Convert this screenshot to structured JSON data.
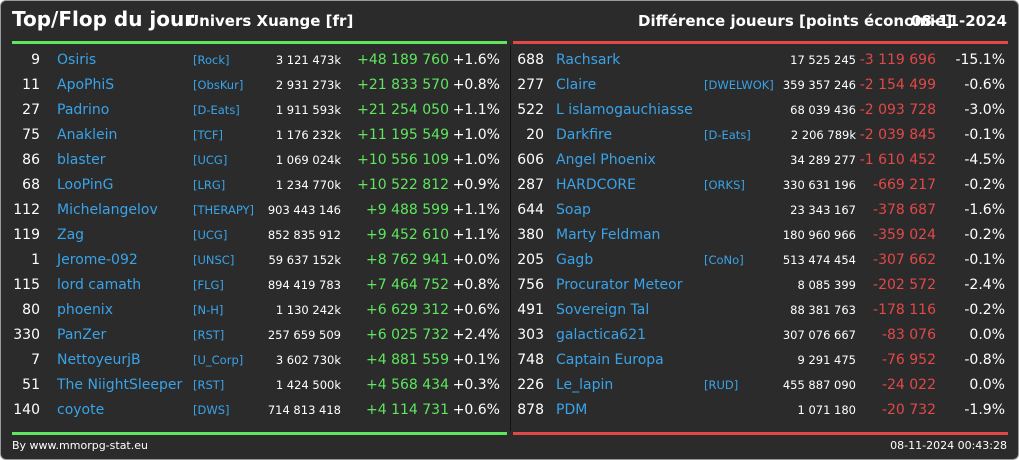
{
  "header": {
    "title": "Top/Flop du jour",
    "universe": "Univers Xuange [fr]",
    "subtitle": "Différence joueurs [points économie]",
    "date": "08-11-2024"
  },
  "colors": {
    "gain": "#5ee65e",
    "loss": "#e24848",
    "link": "#3aa3e8",
    "background": "#2b2b2b"
  },
  "top": [
    {
      "rank": "9",
      "name": "Osiris",
      "alliance": "[Rock]",
      "points": "3 121 473k",
      "diff": "+48 189 760",
      "pct": "+1.6%"
    },
    {
      "rank": "11",
      "name": "ApoPhiS",
      "alliance": "[ObsKur]",
      "points": "2 931 273k",
      "diff": "+21 833 570",
      "pct": "+0.8%"
    },
    {
      "rank": "27",
      "name": "Padrino",
      "alliance": "[D-Eats]",
      "points": "1 911 593k",
      "diff": "+21 254 050",
      "pct": "+1.1%"
    },
    {
      "rank": "75",
      "name": "Anaklein",
      "alliance": "[TCF]",
      "points": "1 176 232k",
      "diff": "+11 195 549",
      "pct": "+1.0%"
    },
    {
      "rank": "86",
      "name": "blaster",
      "alliance": "[UCG]",
      "points": "1 069 024k",
      "diff": "+10 556 109",
      "pct": "+1.0%"
    },
    {
      "rank": "68",
      "name": "LooPinG",
      "alliance": "[LRG]",
      "points": "1 234 770k",
      "diff": "+10 522 812",
      "pct": "+0.9%"
    },
    {
      "rank": "112",
      "name": "Michelangelov",
      "alliance": "[THERAPY]",
      "points": "903 443 146",
      "diff": "+9 488 599",
      "pct": "+1.1%"
    },
    {
      "rank": "119",
      "name": "Zag",
      "alliance": "[UCG]",
      "points": "852 835 912",
      "diff": "+9 452 610",
      "pct": "+1.1%"
    },
    {
      "rank": "1",
      "name": "Jerome-092",
      "alliance": "[UNSC]",
      "points": "59 637 152k",
      "diff": "+8 762 941",
      "pct": "+0.0%"
    },
    {
      "rank": "115",
      "name": "lord camath",
      "alliance": "[FLG]",
      "points": "894 419 783",
      "diff": "+7 464 752",
      "pct": "+0.8%"
    },
    {
      "rank": "80",
      "name": "phoenix",
      "alliance": "[N-H]",
      "points": "1 130 242k",
      "diff": "+6 629 312",
      "pct": "+0.6%"
    },
    {
      "rank": "330",
      "name": "PanZer",
      "alliance": "[RST]",
      "points": "257 659 509",
      "diff": "+6 025 732",
      "pct": "+2.4%"
    },
    {
      "rank": "7",
      "name": "NettoyeurjB",
      "alliance": "[U_Corp]",
      "points": "3 602 730k",
      "diff": "+4 881 559",
      "pct": "+0.1%"
    },
    {
      "rank": "51",
      "name": "The NiightSleeper",
      "alliance": "[RST]",
      "points": "1 424 500k",
      "diff": "+4 568 434",
      "pct": "+0.3%"
    },
    {
      "rank": "140",
      "name": "coyote",
      "alliance": "[DWS]",
      "points": "714 813 418",
      "diff": "+4 114 731",
      "pct": "+0.6%"
    }
  ],
  "flop": [
    {
      "rank": "688",
      "name": "Rachsark",
      "alliance": "",
      "points": "17 525 245",
      "diff": "-3 119 696",
      "pct": "-15.1%"
    },
    {
      "rank": "277",
      "name": "Claire",
      "alliance": "[DWELWOK]",
      "points": "359 357 246",
      "diff": "-2 154 499",
      "pct": "-0.6%"
    },
    {
      "rank": "522",
      "name": "L islamogauchiasse",
      "alliance": "",
      "points": "68 039 436",
      "diff": "-2 093 728",
      "pct": "-3.0%"
    },
    {
      "rank": "20",
      "name": "Darkfire",
      "alliance": "[D-Eats]",
      "points": "2 206 789k",
      "diff": "-2 039 845",
      "pct": "-0.1%"
    },
    {
      "rank": "606",
      "name": "Angel Phoenix",
      "alliance": "",
      "points": "34 289 277",
      "diff": "-1 610 452",
      "pct": "-4.5%"
    },
    {
      "rank": "287",
      "name": "HARDCORE",
      "alliance": "[ORKS]",
      "points": "330 631 196",
      "diff": "-669 217",
      "pct": "-0.2%"
    },
    {
      "rank": "644",
      "name": "Soap",
      "alliance": "",
      "points": "23 343 167",
      "diff": "-378 687",
      "pct": "-1.6%"
    },
    {
      "rank": "380",
      "name": "Marty Feldman",
      "alliance": "",
      "points": "180 960 966",
      "diff": "-359 024",
      "pct": "-0.2%"
    },
    {
      "rank": "205",
      "name": "Gagb",
      "alliance": "[CoNo]",
      "points": "513 474 454",
      "diff": "-307 662",
      "pct": "-0.1%"
    },
    {
      "rank": "756",
      "name": "Procurator Meteor",
      "alliance": "",
      "points": "8 085 399",
      "diff": "-202 572",
      "pct": "-2.4%"
    },
    {
      "rank": "491",
      "name": "Sovereign Tal",
      "alliance": "",
      "points": "88 381 763",
      "diff": "-178 116",
      "pct": "-0.2%"
    },
    {
      "rank": "303",
      "name": "galactica621",
      "alliance": "",
      "points": "307 076 667",
      "diff": "-83 076",
      "pct": "0.0%"
    },
    {
      "rank": "748",
      "name": "Captain Europa",
      "alliance": "",
      "points": "9 291 475",
      "diff": "-76 952",
      "pct": "-0.8%"
    },
    {
      "rank": "226",
      "name": "Le_lapin",
      "alliance": "[RUD]",
      "points": "455 887 090",
      "diff": "-24 022",
      "pct": "0.0%"
    },
    {
      "rank": "878",
      "name": "PDM",
      "alliance": "",
      "points": "1 071 180",
      "diff": "-20 732",
      "pct": "-1.9%"
    }
  ],
  "footer": {
    "credit": "By www.mmorpg-stat.eu",
    "timestamp": "08-11-2024 00:43:28"
  }
}
